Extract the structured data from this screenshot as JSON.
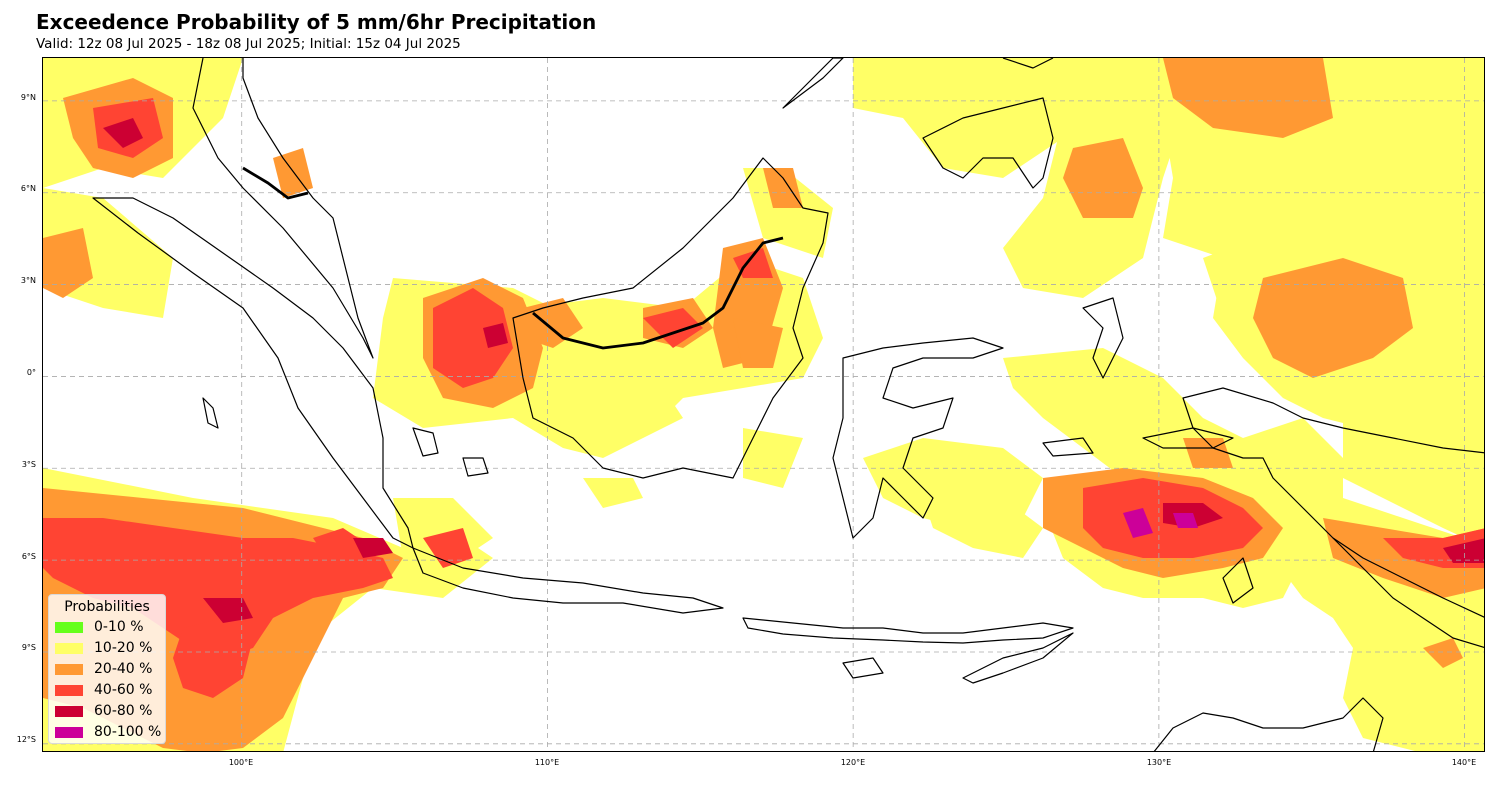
{
  "title": "Exceedence Probability of 5 mm/6hr Precipitation",
  "subtitle": "Valid: 12z 08 Jul 2025 - 18z 08 Jul 2025; Initial: 15z 04 Jul 2025",
  "map": {
    "lon_range": [
      93.5,
      140.7
    ],
    "lat_range": [
      -12.3,
      10.4
    ],
    "gridlines": true,
    "lat_ticks": [
      "9°N",
      "6°N",
      "3°N",
      "0°",
      "3°S",
      "6°S",
      "9°S",
      "12°S"
    ],
    "lon_ticks": [
      "100°E",
      "110°E",
      "120°E",
      "130°E",
      "140°E"
    ]
  },
  "legend": {
    "title": "Probabilities",
    "placement": "bottom-left",
    "items": [
      {
        "label": "0-10 %",
        "color": "#66ff1a"
      },
      {
        "label": "10-20 %",
        "color": "#ffff66"
      },
      {
        "label": "20-40 %",
        "color": "#ff9933"
      },
      {
        "label": "40-60 %",
        "color": "#ff4433"
      },
      {
        "label": "60-80 %",
        "color": "#cc0033"
      },
      {
        "label": "80-100 %",
        "color": "#cc0099"
      }
    ]
  }
}
